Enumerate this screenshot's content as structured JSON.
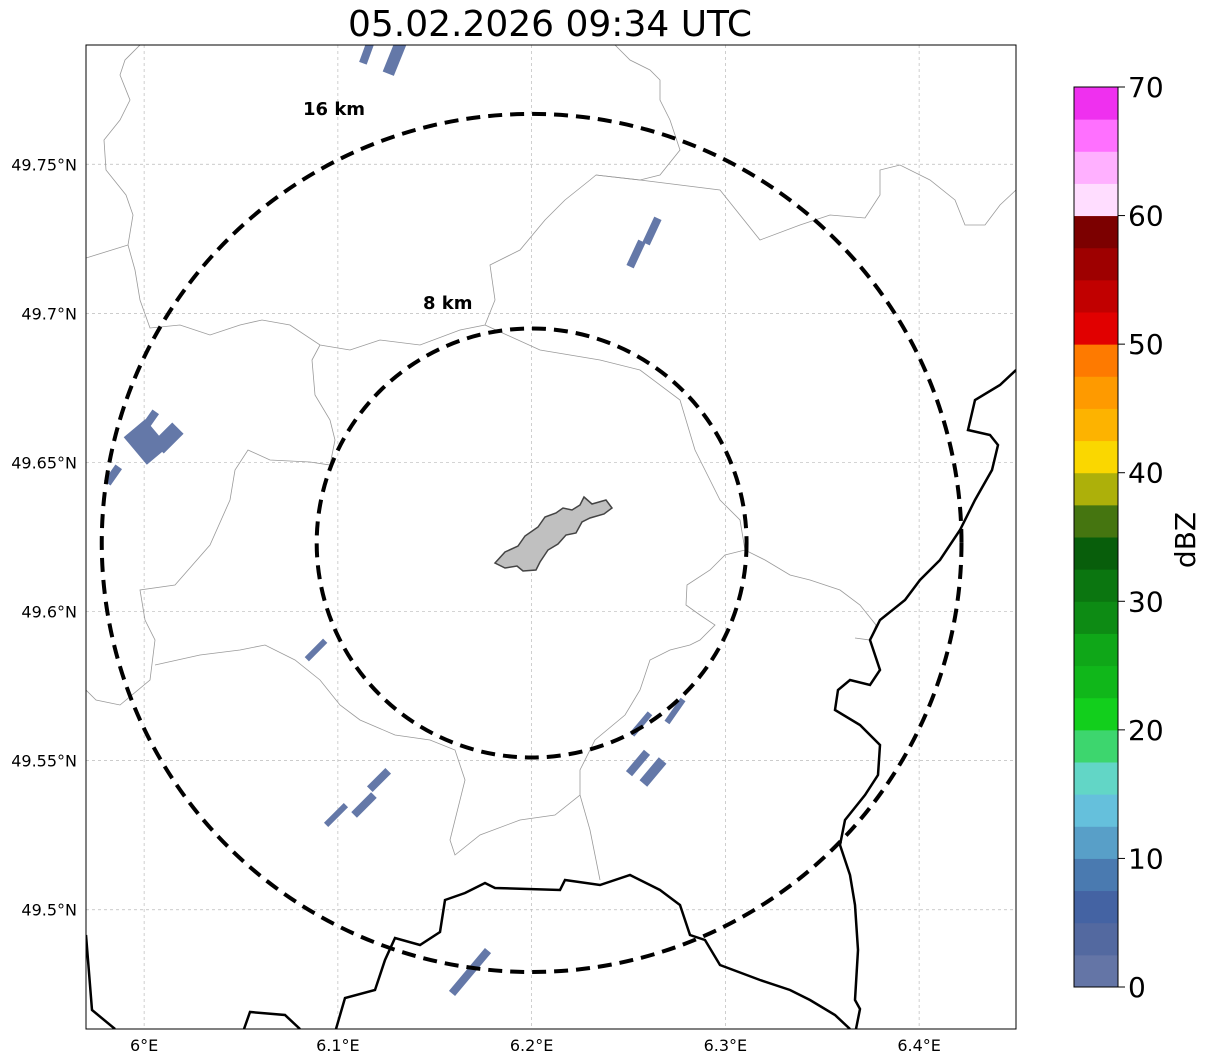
{
  "title": "05.02.2026 09:34 UTC",
  "map": {
    "lon_range": [
      5.97,
      6.45
    ],
    "lat_range": [
      49.46,
      49.79
    ],
    "gridlines": true,
    "center": {
      "lon": 6.2,
      "lat": 49.623
    },
    "lon_ticks": [
      {
        "value": 6.0,
        "label": "6°E"
      },
      {
        "value": 6.1,
        "label": "6.1°E"
      },
      {
        "value": 6.2,
        "label": "6.2°E"
      },
      {
        "value": 6.3,
        "label": "6.3°E"
      },
      {
        "value": 6.4,
        "label": "6.4°E"
      }
    ],
    "lat_ticks": [
      {
        "value": 49.75,
        "label": "49.75°N"
      },
      {
        "value": 49.7,
        "label": "49.7°N"
      },
      {
        "value": 49.65,
        "label": "49.65°N"
      },
      {
        "value": 49.6,
        "label": "49.6°N"
      },
      {
        "value": 49.55,
        "label": "49.55°N"
      },
      {
        "value": 49.5,
        "label": "49.5°N"
      }
    ],
    "range_rings": [
      {
        "radius_km": 8,
        "label": "8 km"
      },
      {
        "radius_km": 16,
        "label": "16 km"
      }
    ],
    "echo_color": "#6478a8",
    "city_fill": "#c0c0c0"
  },
  "colorbar": {
    "unit": "dBZ",
    "min": 0,
    "max": 70,
    "step": 2.5,
    "tick_labels": [
      "0",
      "10",
      "20",
      "30",
      "40",
      "50",
      "60",
      "70"
    ],
    "colors": [
      "#6475a6",
      "#5369a0",
      "#4463a3",
      "#4a7ab0",
      "#589fc8",
      "#65c0dc",
      "#62d6c6",
      "#3dd66e",
      "#12cf1c",
      "#10b71a",
      "#0fa718",
      "#0d8b14",
      "#0b7610",
      "#085e0b",
      "#457510",
      "#adb00a",
      "#fad700",
      "#fdb300",
      "#fe9a00",
      "#fe7a00",
      "#e10000",
      "#c10000",
      "#9e0000",
      "#7c0000",
      "#ffddff",
      "#ffb0ff",
      "#ff70ff",
      "#ef30ef"
    ]
  }
}
